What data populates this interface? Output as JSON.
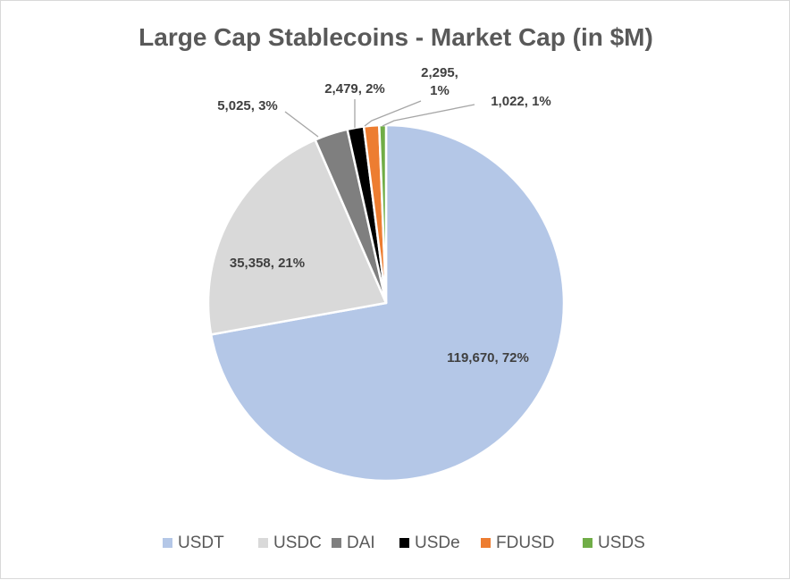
{
  "chart_data": {
    "type": "pie",
    "title": "Large Cap Stablecoins - Market Cap (in $M)",
    "categories": [
      "USDT",
      "USDC",
      "DAI",
      "USDe",
      "FDUSD",
      "USDS"
    ],
    "values": [
      119670,
      35358,
      5025,
      2479,
      2295,
      1022
    ],
    "labels": [
      "119,670, 72%",
      "35,358, 21%",
      "5,025, 3%",
      "2,479, 2%",
      "2,295, 1%",
      "1,022, 1%"
    ],
    "colors": [
      "#b4c7e7",
      "#d9d9d9",
      "#7f7f7f",
      "#000000",
      "#ed7d31",
      "#70ad47"
    ],
    "legend_position": "bottom",
    "start_angle_deg": 0,
    "direction": "clockwise"
  }
}
